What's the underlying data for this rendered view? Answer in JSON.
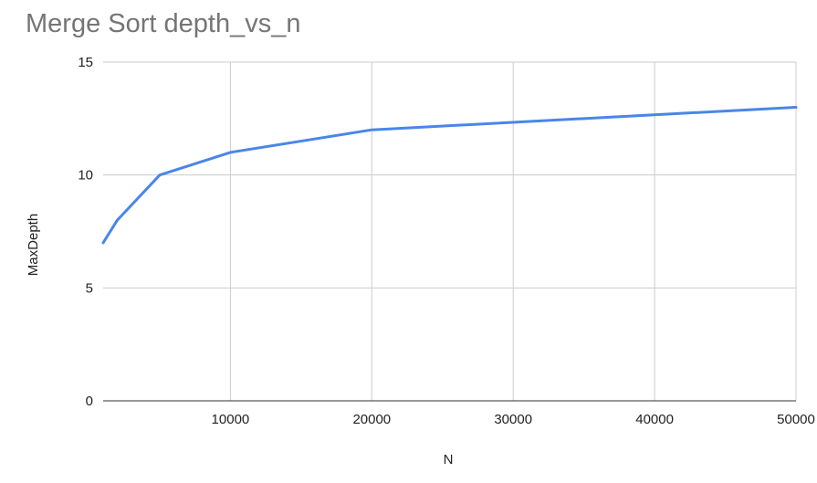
{
  "chart_data": {
    "type": "line",
    "title": "Merge Sort depth_vs_n",
    "xlabel": "N",
    "ylabel": "MaxDepth",
    "xlim": [
      1000,
      50000
    ],
    "ylim": [
      0,
      15
    ],
    "x_ticks": [
      10000,
      20000,
      30000,
      40000,
      50000
    ],
    "x_tick_labels": [
      "10000",
      "20000",
      "30000",
      "40000",
      "50000"
    ],
    "y_ticks": [
      0,
      5,
      10,
      15
    ],
    "y_tick_labels": [
      "0",
      "5",
      "10",
      "15"
    ],
    "grid": true,
    "legend": "none",
    "series": [
      {
        "color": "#4a86e8",
        "x": [
          1000,
          2000,
          5000,
          10000,
          20000,
          50000
        ],
        "y": [
          7,
          8,
          10,
          11,
          12,
          13
        ]
      }
    ]
  }
}
